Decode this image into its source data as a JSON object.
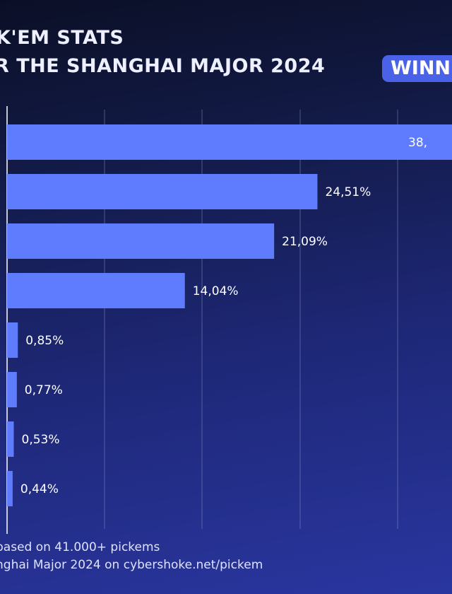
{
  "title": {
    "line1": "K'EM STATS",
    "line2": "R THE SHANGHAI MAJOR 2024",
    "badge": "WINN"
  },
  "footer": {
    "line1": "based on 41.000+ pickems",
    "line2": "nghai Major 2024 on cybershoke.net/pickem"
  },
  "colors": {
    "bar": "#5f7cff",
    "gridline": "#8a93c8",
    "axis": "#ffffff"
  },
  "chart_data": {
    "type": "bar",
    "orientation": "horizontal",
    "grid": true,
    "values": [
      38,
      24.51,
      21.09,
      14.04,
      0.85,
      0.77,
      0.53,
      0.44
    ],
    "labels": [
      "38,",
      "24,51%",
      "21,09%",
      "14,04%",
      "0,85%",
      "0,77%",
      "0,53%",
      "0,44%"
    ]
  }
}
